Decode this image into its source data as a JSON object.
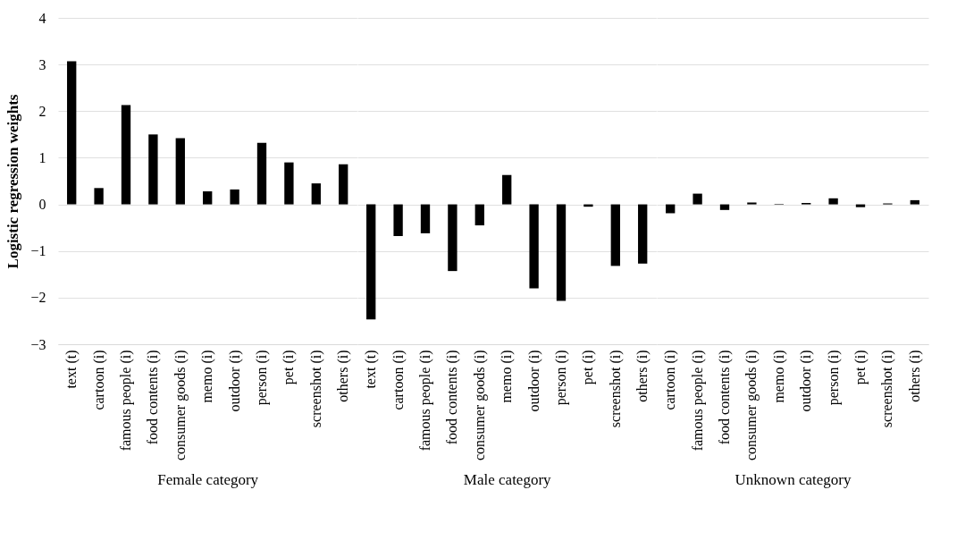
{
  "chart_data": [
    {
      "type": "bar",
      "xlabel": "Female category",
      "ylabel": "Logistic regression weights",
      "categories": [
        "text (t)",
        "cartoon (i)",
        "famous people (i)",
        "food contents (i)",
        "consumer goods (i)",
        "memo (i)",
        "outdoor (i)",
        "person (i)",
        "pet (i)",
        "screenshot (i)",
        "others (i)"
      ],
      "values": [
        3.07,
        0.35,
        2.13,
        1.5,
        1.42,
        0.28,
        0.32,
        1.32,
        0.9,
        0.45,
        0.86
      ],
      "color": "#000000",
      "ylim": [
        -3,
        4
      ],
      "yticks": [
        -3,
        -2,
        -1,
        0,
        1,
        2,
        3,
        4
      ],
      "grid": "y"
    },
    {
      "type": "bar",
      "xlabel": "Male category",
      "categories": [
        "text (t)",
        "cartoon (i)",
        "famous people (i)",
        "food contents (i)",
        "consumer goods (i)",
        "memo (i)",
        "outdoor (i)",
        "person (i)",
        "pet (i)",
        "screenshot (i)",
        "others (i)"
      ],
      "values": [
        -2.47,
        -0.68,
        -0.62,
        -1.43,
        -0.45,
        0.63,
        -1.8,
        -2.07,
        -0.05,
        -1.32,
        -1.27
      ],
      "color": "#000000",
      "ylim": [
        -3,
        4
      ],
      "yticks": [
        -3,
        -2,
        -1,
        0,
        1,
        2,
        3,
        4
      ],
      "grid": "y",
      "tick_labels": "x"
    },
    {
      "type": "bar",
      "xlabel": "Unknown category",
      "categories": [
        "cartoon (i)",
        "famous people (i)",
        "food contents (i)",
        "consumer goods (i)",
        "memo (i)",
        "outdoor (i)",
        "person (i)",
        "pet (i)",
        "screenshot (i)",
        "others (i)"
      ],
      "values": [
        -0.19,
        0.23,
        -0.12,
        0.04,
        0.01,
        0.03,
        0.13,
        -0.06,
        0.02,
        0.09
      ],
      "color": "#000000",
      "ylim": [
        -3,
        4
      ],
      "yticks": [
        -3,
        -2,
        -1,
        0,
        1,
        2,
        3,
        4
      ],
      "grid": "y",
      "tick_labels": "x"
    }
  ]
}
